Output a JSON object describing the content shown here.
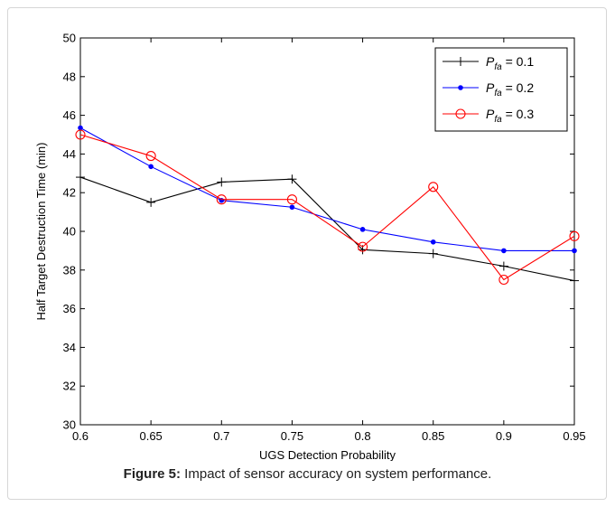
{
  "caption": {
    "label": "Figure 5:",
    "text": " Impact of sensor accuracy on system performance."
  },
  "chart_data": {
    "type": "line",
    "xlabel": "UGS Detection Probability",
    "ylabel": "Half Target Destruction Time (min)",
    "xlim": [
      0.6,
      0.95
    ],
    "ylim": [
      30,
      50
    ],
    "x_ticks": [
      "0.6",
      "0.65",
      "0.7",
      "0.75",
      "0.8",
      "0.85",
      "0.9",
      "0.95"
    ],
    "y_ticks": [
      "30",
      "32",
      "34",
      "36",
      "38",
      "40",
      "42",
      "44",
      "46",
      "48",
      "50"
    ],
    "grid": false,
    "legend_position": "top-right",
    "x": [
      0.6,
      0.65,
      0.7,
      0.75,
      0.8,
      0.85,
      0.9,
      0.95
    ],
    "series": [
      {
        "name": "P_fa = 0.1",
        "legend_main": "P",
        "legend_sub": "fa",
        "legend_tail": " = 0.1",
        "color": "#000000",
        "marker": "plus",
        "values": [
          42.8,
          41.5,
          42.55,
          42.7,
          39.05,
          38.85,
          38.2,
          37.45
        ]
      },
      {
        "name": "P_fa = 0.2",
        "legend_main": "P",
        "legend_sub": "fa",
        "legend_tail": " = 0.2",
        "color": "#0000ff",
        "marker": "dot",
        "values": [
          45.35,
          43.35,
          41.6,
          41.25,
          40.1,
          39.45,
          39.0,
          39.0
        ]
      },
      {
        "name": "P_fa = 0.3",
        "legend_main": "P",
        "legend_sub": "fa",
        "legend_tail": " = 0.3",
        "color": "#ff0000",
        "marker": "circle",
        "values": [
          45.0,
          43.9,
          41.65,
          41.65,
          39.2,
          42.3,
          37.5,
          39.75
        ]
      }
    ]
  }
}
